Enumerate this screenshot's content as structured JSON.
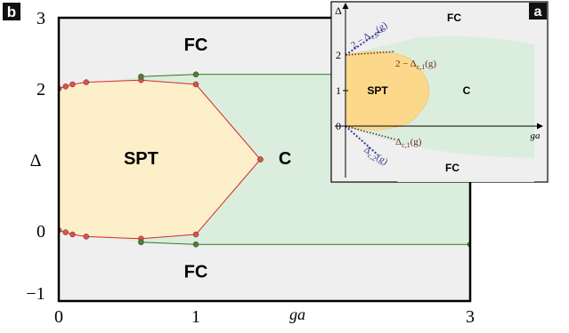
{
  "chart_data": [
    {
      "panel_label": "b",
      "type": "scatter",
      "xlabel": "ga",
      "ylabel": "Δ",
      "xlim": [
        0,
        3
      ],
      "ylim": [
        -1,
        3
      ],
      "x_ticks": [
        0,
        1,
        3
      ],
      "y_ticks": [
        -1,
        0,
        2,
        3
      ],
      "x_tick_labels": [
        "0",
        "1",
        "3"
      ],
      "y_tick_labels": [
        "−1",
        "0",
        "2",
        "3"
      ],
      "regions": [
        {
          "label": "FC",
          "x": 1.0,
          "y": 2.6
        },
        {
          "label": "SPT",
          "x": 0.6,
          "y": 1.0
        },
        {
          "label": "C",
          "x": 1.65,
          "y": 1.0
        },
        {
          "label": "FC",
          "x": 1.0,
          "y": -0.6
        }
      ],
      "series": [
        {
          "marker_color": "#d9534f",
          "upper": [
            [
              0.0,
              2.0
            ],
            [
              0.05,
              2.03
            ],
            [
              0.1,
              2.06
            ],
            [
              0.2,
              2.09
            ],
            [
              0.6,
              2.12
            ],
            [
              1.0,
              2.06
            ],
            [
              1.47,
              1.0
            ]
          ],
          "lower": [
            [
              0.0,
              0.0
            ],
            [
              0.05,
              -0.03
            ],
            [
              0.1,
              -0.06
            ],
            [
              0.2,
              -0.09
            ],
            [
              0.6,
              -0.12
            ],
            [
              1.0,
              -0.06
            ],
            [
              1.47,
              1.0
            ]
          ]
        },
        {
          "marker_color": "#3a8a3a",
          "upper": [
            [
              0.6,
              2.17
            ],
            [
              1.0,
              2.2
            ],
            [
              3.0,
              2.2
            ]
          ],
          "lower": [
            [
              0.6,
              -0.17
            ],
            [
              1.0,
              -0.2
            ],
            [
              3.0,
              -0.2
            ]
          ]
        }
      ]
    },
    {
      "panel_label": "a",
      "type": "diagram",
      "xlabel": "ga",
      "ylabel": "Δ",
      "y_ticks": [
        0,
        1,
        2
      ],
      "y_tick_labels": [
        "0",
        "1",
        "2"
      ],
      "regions": [
        {
          "label": "FC"
        },
        {
          "label": "SPT"
        },
        {
          "label": "C"
        },
        {
          "label": "FC"
        }
      ],
      "line_labels": [
        {
          "text": "2 − Δ",
          "sub": "c,2",
          "arg": "(g)",
          "color": "#3b3b8f"
        },
        {
          "text": "2 − Δ",
          "sub": "c,1",
          "arg": "(g)",
          "color": "#6b2b2b"
        },
        {
          "text": "Δ",
          "sub": "c,1",
          "arg": "(g)",
          "color": "#6b2b2b"
        },
        {
          "text": "Δ",
          "sub": "c,2",
          "arg": "(g)",
          "color": "#3b3b8f"
        }
      ]
    }
  ],
  "colors": {
    "fc": "#efefef",
    "c": "#dbeedd",
    "spt": "#fdefc9",
    "spt_inset": "#fcd98a",
    "panel_label_bg": "#111111",
    "red_line": "#d62a2a",
    "green_line": "#2a7a2a"
  }
}
